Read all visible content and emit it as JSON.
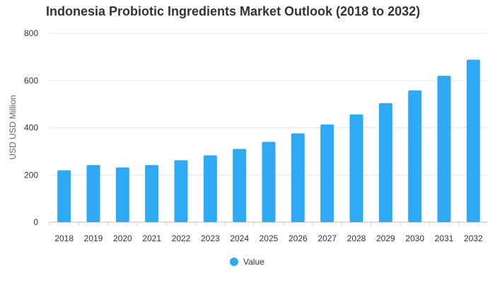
{
  "chart_data": {
    "type": "bar",
    "title": "Indonesia Probiotic Ingredients Market Outlook (2018 to 2032)",
    "xlabel": "",
    "ylabel": "USD USD Million",
    "categories": [
      "2018",
      "2019",
      "2020",
      "2021",
      "2022",
      "2023",
      "2024",
      "2025",
      "2026",
      "2027",
      "2028",
      "2029",
      "2030",
      "2031",
      "2032"
    ],
    "series": [
      {
        "name": "Value",
        "values": [
          220,
          242,
          232,
          242,
          262,
          283,
          310,
          340,
          376,
          414,
          456,
          504,
          558,
          620,
          688
        ],
        "color": "#2eaaf5"
      }
    ],
    "ylim": [
      0,
      800
    ],
    "yticks": [
      0,
      200,
      400,
      600,
      800
    ],
    "grid": true,
    "legend_position": "bottom"
  }
}
